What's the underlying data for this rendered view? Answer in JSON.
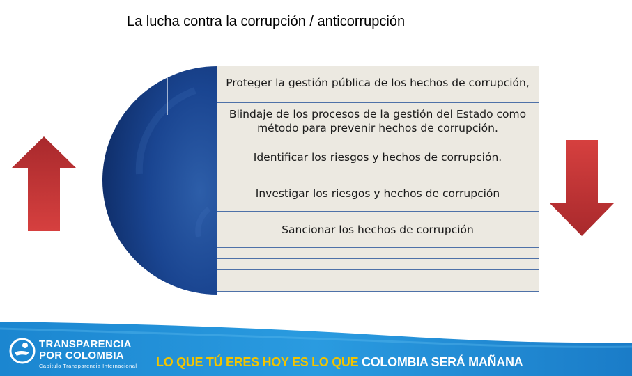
{
  "title": "La lucha contra la corrupción / anticorrupción",
  "items": [
    "Proteger la gestión pública de los hechos de corrupción,",
    "Blindaje de los procesos de la gestión del Estado como método para prevenir hechos de corrupción.",
    "Identificar los riesgos y hechos de corrupción.",
    "Investigar los riesgos y hechos de corrupción",
    "Sancionar los hechos de corrupción"
  ],
  "colors": {
    "circle_dark": "#0f2f6b",
    "circle_light": "#2a5aa8",
    "row_fill": "#ece9e1",
    "row_border": "#4e71a8",
    "arrow_red": "#c8353a",
    "footer_blue": "#1e8fd6",
    "slogan_yellow": "#f2c400"
  },
  "footer": {
    "logo_line1": "TRANSPARENCIA",
    "logo_line2": "POR COLOMBIA",
    "logo_line3": "Capítulo Transparencia Internacional",
    "slogan_part1": "LO QUE TÚ ERES HOY ES LO QUE",
    "slogan_part2": "COLOMBIA SERÁ MAÑANA"
  },
  "icons": {
    "left_arrow": "arrow-up-icon",
    "right_arrow": "arrow-down-icon",
    "logo": "transparencia-logo-icon"
  }
}
